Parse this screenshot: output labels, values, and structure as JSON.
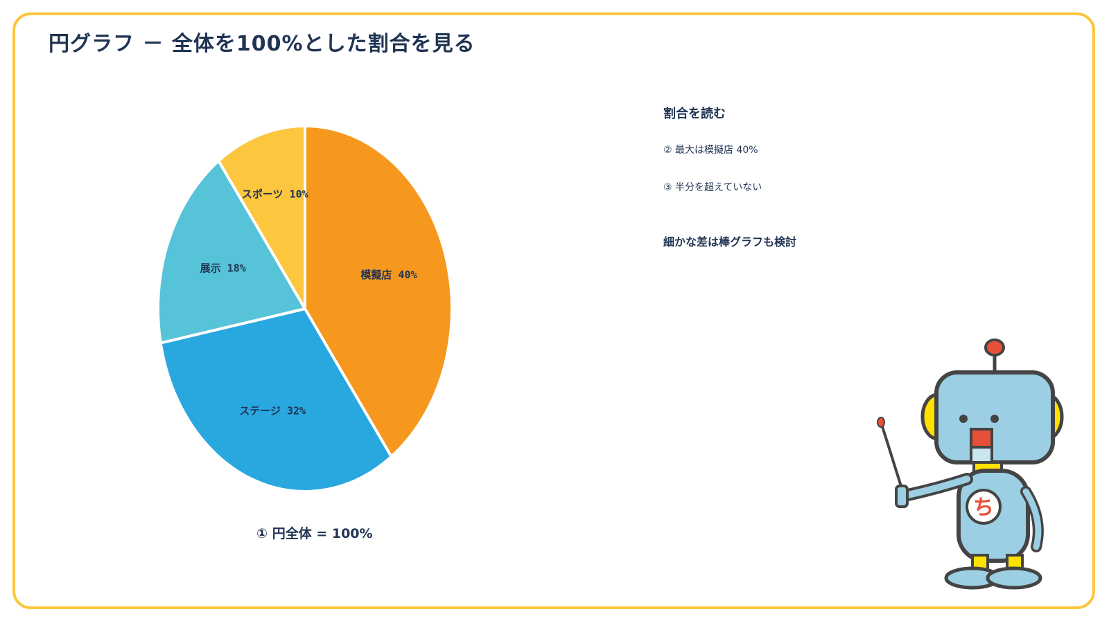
{
  "page": {
    "title": "円グラフ － 全体を100%とした割合を見る"
  },
  "chart_data": {
    "type": "pie",
    "title": "",
    "categories": [
      "模擬店",
      "ステージ",
      "展示",
      "スポーツ"
    ],
    "values": [
      40,
      32,
      18,
      10
    ],
    "unit": "%",
    "labels": [
      "模擬店 40%",
      "ステージ 32%",
      "展示 18%",
      "スポーツ 10%"
    ],
    "colors": [
      "#f6971e",
      "#29a8e0",
      "#57c3d8",
      "#fdc63f"
    ],
    "start_angle_deg": 0,
    "direction": "clockwise",
    "caption": "① 円全体 = 100%"
  },
  "notes": {
    "heading": "割合を読む",
    "items": [
      "② 最大は模擬店 40%",
      "③ 半分を超えていない"
    ],
    "tip": "細かな差は棒グラフも検討"
  },
  "colors": {
    "frame": "#fcc63d",
    "text": "#1f3352"
  },
  "mascot": {
    "icon": "robot-mascot-icon",
    "badge_text": "ち"
  }
}
